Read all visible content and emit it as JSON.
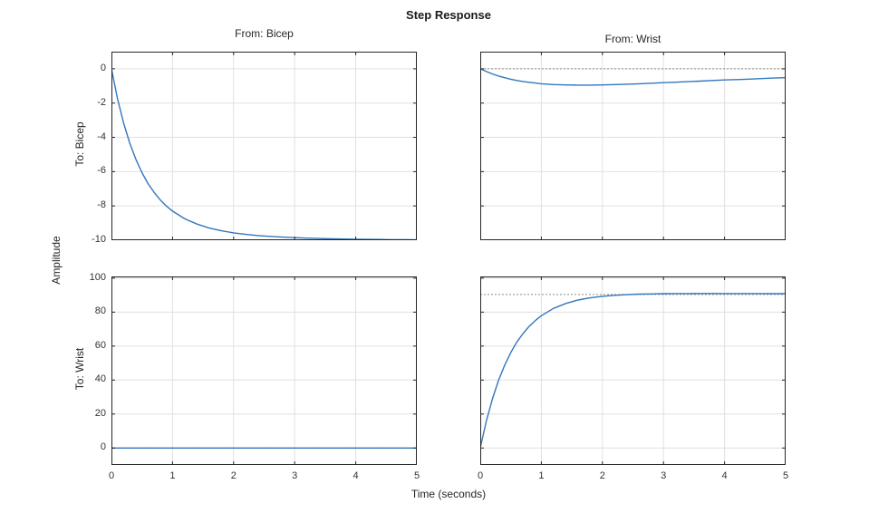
{
  "figure": {
    "title": "Step Response",
    "xlabel": "Time (seconds)",
    "ylabel": "Amplitude",
    "background": "#ffffff"
  },
  "chart_data": {
    "type": "line",
    "title": "Step Response",
    "xlabel": "Time (seconds)",
    "ylabel": "Amplitude",
    "col_titles": [
      "From: Bicep",
      "From: Wrist"
    ],
    "row_labels": [
      "To: Bicep",
      "To: Wrist"
    ],
    "legend": "none",
    "grid": true,
    "line_color": "#3277bd",
    "grid_color": "#e0e0e0",
    "steady_state_color": "#8c8c8c",
    "axis_color": "#262626",
    "time": [
      0,
      0.1,
      0.2,
      0.3,
      0.4,
      0.5,
      0.6,
      0.7,
      0.8,
      0.9,
      1,
      1.2,
      1.4,
      1.6,
      1.8,
      2,
      2.2,
      2.4,
      2.6,
      2.8,
      3,
      3.2,
      3.4,
      3.6,
      3.8,
      4,
      4.2,
      4.4,
      4.6,
      4.8,
      5
    ],
    "subplots": [
      {
        "name": "from-bicep-to-bicep",
        "from": "Bicep",
        "to": "Bicep",
        "xlim": [
          0,
          5
        ],
        "ylim": [
          -10,
          1
        ],
        "xticks": [
          0,
          1,
          2,
          3,
          4,
          5
        ],
        "xtick_labels": [
          "0",
          "1",
          "2",
          "3",
          "4",
          "5"
        ],
        "show_xtick_labels": false,
        "yticks": [
          0,
          -2,
          -4,
          -6,
          -8,
          -10
        ],
        "ytick_labels": [
          "0",
          "-2",
          "-4",
          "-6",
          "-8",
          "-10"
        ],
        "show_ytick_labels": true,
        "steady_state": -10,
        "values": [
          0,
          -1.75,
          -3.18,
          -4.34,
          -5.29,
          -6.06,
          -6.7,
          -7.22,
          -7.65,
          -8.01,
          -8.3,
          -8.75,
          -9.06,
          -9.29,
          -9.45,
          -9.57,
          -9.66,
          -9.73,
          -9.78,
          -9.82,
          -9.85,
          -9.88,
          -9.9,
          -9.92,
          -9.93,
          -9.94,
          -9.95,
          -9.96,
          -9.97,
          -9.97,
          -9.98
        ]
      },
      {
        "name": "from-wrist-to-bicep",
        "from": "Wrist",
        "to": "Bicep",
        "xlim": [
          0,
          5
        ],
        "ylim": [
          -10,
          1
        ],
        "xticks": [
          0,
          1,
          2,
          3,
          4,
          5
        ],
        "xtick_labels": [
          "0",
          "1",
          "2",
          "3",
          "4",
          "5"
        ],
        "show_xtick_labels": false,
        "yticks": [
          0,
          -2,
          -4,
          -6,
          -8,
          -10
        ],
        "ytick_labels": [
          "0",
          "-2",
          "-4",
          "-6",
          "-8",
          "-10"
        ],
        "show_ytick_labels": false,
        "steady_state": 0,
        "values": [
          0,
          -0.16,
          -0.3,
          -0.42,
          -0.52,
          -0.61,
          -0.68,
          -0.74,
          -0.79,
          -0.83,
          -0.87,
          -0.92,
          -0.94,
          -0.95,
          -0.95,
          -0.94,
          -0.92,
          -0.9,
          -0.87,
          -0.84,
          -0.81,
          -0.78,
          -0.75,
          -0.72,
          -0.68,
          -0.65,
          -0.63,
          -0.6,
          -0.57,
          -0.54,
          -0.52
        ]
      },
      {
        "name": "from-bicep-to-wrist",
        "from": "Bicep",
        "to": "Wrist",
        "xlim": [
          0,
          5
        ],
        "ylim": [
          -10,
          101
        ],
        "xticks": [
          0,
          1,
          2,
          3,
          4,
          5
        ],
        "xtick_labels": [
          "0",
          "1",
          "2",
          "3",
          "4",
          "5"
        ],
        "show_xtick_labels": true,
        "yticks": [
          100,
          80,
          60,
          40,
          20,
          0
        ],
        "ytick_labels": [
          "100",
          "80",
          "60",
          "40",
          "20",
          "0"
        ],
        "show_ytick_labels": true,
        "steady_state": 0,
        "values": [
          0,
          0,
          0,
          0,
          0,
          0,
          0,
          0,
          0,
          0,
          0,
          0,
          0,
          0,
          0,
          0,
          0,
          0,
          0,
          0,
          0,
          0,
          0,
          0,
          0,
          0,
          0,
          0,
          0,
          0,
          0
        ]
      },
      {
        "name": "from-wrist-to-wrist",
        "from": "Wrist",
        "to": "Wrist",
        "xlim": [
          0,
          5
        ],
        "ylim": [
          -10,
          101
        ],
        "xticks": [
          0,
          1,
          2,
          3,
          4,
          5
        ],
        "xtick_labels": [
          "0",
          "1",
          "2",
          "3",
          "4",
          "5"
        ],
        "show_xtick_labels": true,
        "yticks": [
          100,
          80,
          60,
          40,
          20,
          0
        ],
        "ytick_labels": [
          "100",
          "80",
          "60",
          "40",
          "20",
          "0"
        ],
        "show_ytick_labels": false,
        "steady_state": 90.4,
        "values": [
          0,
          15.9,
          29,
          39.9,
          48.8,
          56.2,
          62.4,
          67.4,
          71.6,
          75,
          77.9,
          82.2,
          85.1,
          87.1,
          88.4,
          89.3,
          89.9,
          90.3,
          90.6,
          90.7,
          90.85,
          90.91,
          90.94,
          90.95,
          90.95,
          90.94,
          90.93,
          90.91,
          90.89,
          90.87,
          90.85
        ]
      }
    ]
  }
}
